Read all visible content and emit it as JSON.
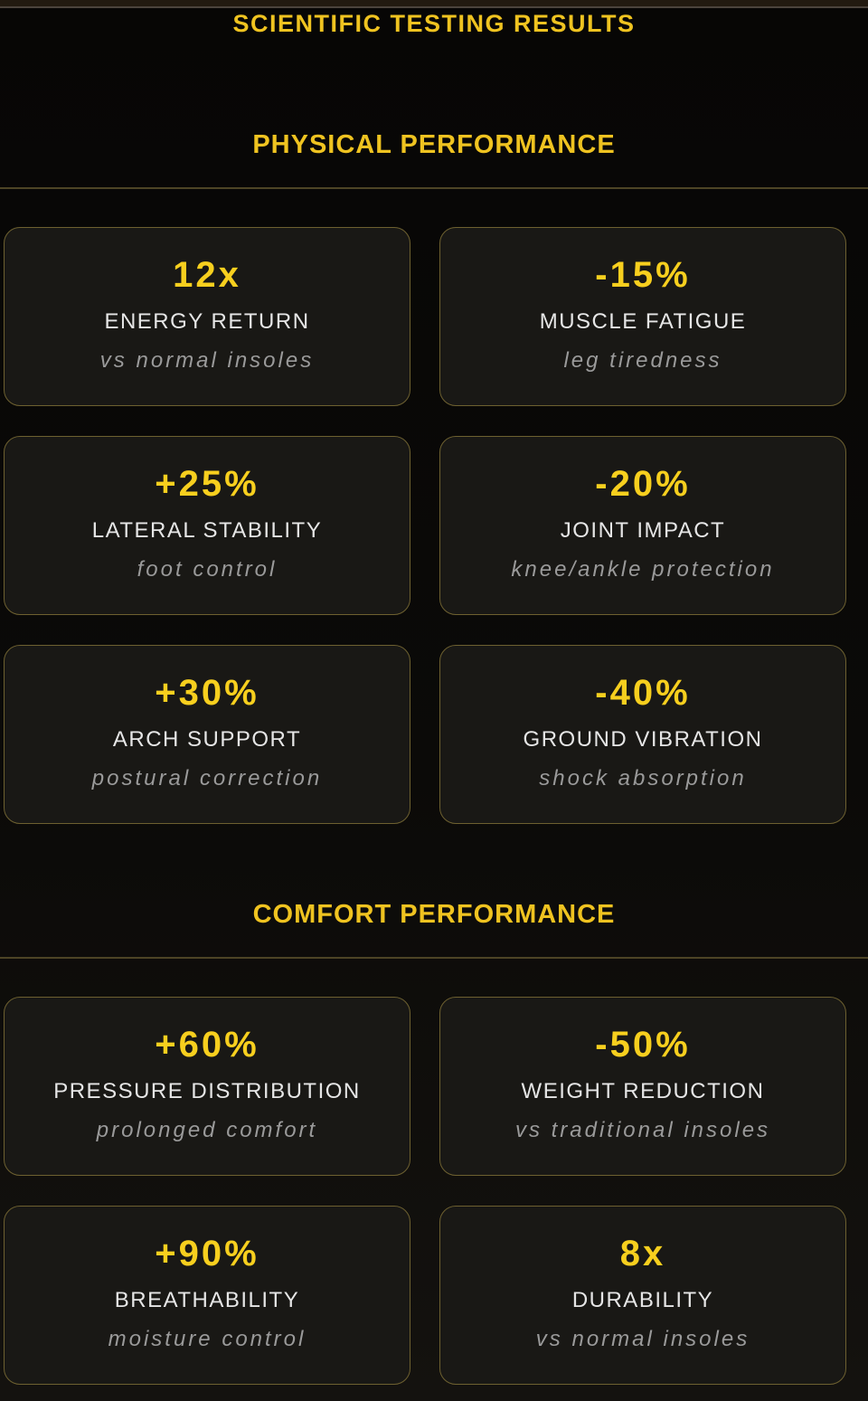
{
  "page_title": "SCIENTIFIC TESTING RESULTS",
  "colors": {
    "accent": "#efc320",
    "value": "#f7cf1e",
    "label": "#e6e6e6",
    "sublabel": "#9a9a9a",
    "card_bg": "#191815",
    "card_border": "#6d6030",
    "divider": "#4d4425",
    "top_strip": "#221a10",
    "top_strip_line": "#4c443c",
    "page_bg": "#0b0a08"
  },
  "sections": [
    {
      "heading": "PHYSICAL PERFORMANCE",
      "cards": [
        {
          "value": "12x",
          "label": "ENERGY RETURN",
          "sublabel": "vs normal insoles"
        },
        {
          "value": "-15%",
          "label": "MUSCLE FATIGUE",
          "sublabel": "leg tiredness"
        },
        {
          "value": "+25%",
          "label": "LATERAL STABILITY",
          "sublabel": "foot control"
        },
        {
          "value": "-20%",
          "label": "JOINT IMPACT",
          "sublabel": "knee/ankle protection"
        },
        {
          "value": "+30%",
          "label": "ARCH SUPPORT",
          "sublabel": "postural correction"
        },
        {
          "value": "-40%",
          "label": "GROUND VIBRATION",
          "sublabel": "shock absorption"
        }
      ]
    },
    {
      "heading": "COMFORT PERFORMANCE",
      "cards": [
        {
          "value": "+60%",
          "label": "PRESSURE DISTRIBUTION",
          "sublabel": "prolonged comfort"
        },
        {
          "value": "-50%",
          "label": "WEIGHT REDUCTION",
          "sublabel": "vs traditional insoles"
        },
        {
          "value": "+90%",
          "label": "BREATHABILITY",
          "sublabel": "moisture control"
        },
        {
          "value": "8x",
          "label": "DURABILITY",
          "sublabel": "vs normal insoles"
        }
      ]
    }
  ]
}
